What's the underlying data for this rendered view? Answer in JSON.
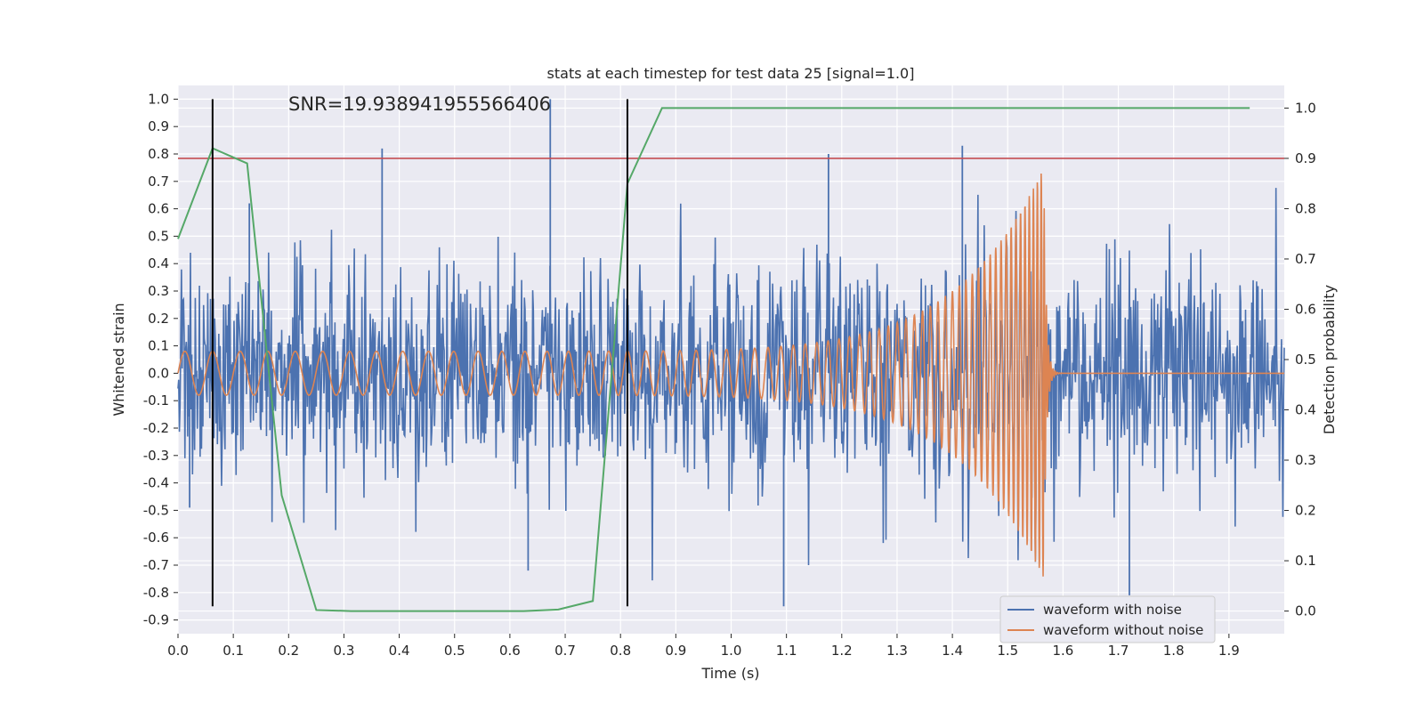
{
  "chart_data": {
    "type": "line",
    "title": "stats at each timestep for test data 25 [signal=1.0]",
    "annotation": "SNR=19.938941955566406",
    "xlabel": "Time (s)",
    "ylabel": "Whitened strain",
    "y2label": "Detection probability",
    "xlim": [
      0.0,
      2.0
    ],
    "ylim": [
      -0.95,
      1.05
    ],
    "y2lim": [
      -0.045,
      1.045
    ],
    "xticks": [
      "0.0",
      "0.1",
      "0.2",
      "0.3",
      "0.4",
      "0.5",
      "0.6",
      "0.7",
      "0.8",
      "0.9",
      "1.0",
      "1.1",
      "1.2",
      "1.3",
      "1.4",
      "1.5",
      "1.6",
      "1.7",
      "1.8",
      "1.9"
    ],
    "yticks": [
      "-0.9",
      "-0.8",
      "-0.7",
      "-0.6",
      "-0.5",
      "-0.4",
      "-0.3",
      "-0.2",
      "-0.1",
      "0.0",
      "0.1",
      "0.2",
      "0.3",
      "0.4",
      "0.5",
      "0.6",
      "0.7",
      "0.8",
      "0.9",
      "1.0"
    ],
    "y2ticks": [
      "0.0",
      "0.1",
      "0.2",
      "0.3",
      "0.4",
      "0.5",
      "0.6",
      "0.7",
      "0.8",
      "0.9",
      "1.0"
    ],
    "grid": true,
    "legend_position": "lower-right",
    "series": [
      {
        "name": "waveform with noise",
        "color": "#4c72b0",
        "kind": "noisy-strain",
        "samples_per_second": 2048,
        "std": 0.2,
        "spikes": [
          {
            "x": 0.369,
            "y": 0.82
          },
          {
            "x": 0.673,
            "y": 1.0
          },
          {
            "x": 1.095,
            "y": -0.85
          },
          {
            "x": 1.176,
            "y": 0.8
          },
          {
            "x": 1.418,
            "y": 0.83
          },
          {
            "x": 1.72,
            "y": -0.81
          },
          {
            "x": 0.021,
            "y": -0.49
          },
          {
            "x": 0.633,
            "y": -0.72
          },
          {
            "x": 0.129,
            "y": 0.62
          }
        ]
      },
      {
        "name": "waveform without noise",
        "color": "#dd8452",
        "kind": "chirp",
        "start_amplitude": 0.08,
        "peak_amplitude": 0.75,
        "merger_time": 1.565,
        "start_frequency": 20,
        "end_frequency": 90
      },
      {
        "name": "detection probability",
        "color": "#55a868",
        "axis": "right",
        "x": [
          0.0,
          0.0625,
          0.125,
          0.1875,
          0.25,
          0.3125,
          0.375,
          0.4375,
          0.5,
          0.5625,
          0.625,
          0.6875,
          0.75,
          0.8125,
          0.875,
          0.9375,
          1.0,
          1.5,
          1.9375
        ],
        "y": [
          0.74,
          0.92,
          0.89,
          0.23,
          0.002,
          0.0,
          0.0,
          0.0,
          0.0,
          0.0,
          0.0,
          0.003,
          0.02,
          0.85,
          1.0,
          1.0,
          1.0,
          1.0,
          1.0
        ]
      }
    ],
    "threshold": {
      "axis": "right",
      "y": 0.9,
      "color": "#c44e52"
    },
    "markers": [
      {
        "x": 0.0625,
        "y_range": [
          -0.85,
          1.0
        ],
        "color": "#000000"
      },
      {
        "x": 0.8125,
        "y_range": [
          -0.85,
          1.0
        ],
        "color": "#000000"
      }
    ]
  }
}
